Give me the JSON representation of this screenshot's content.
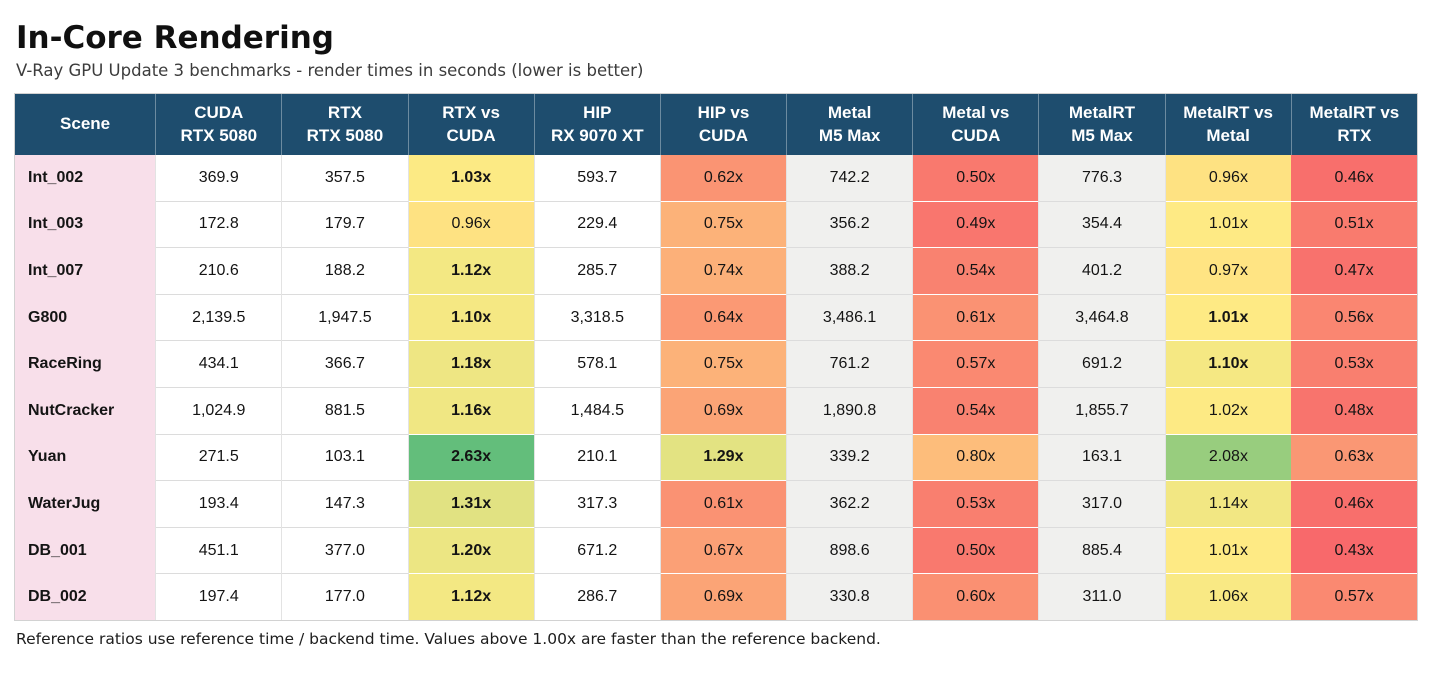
{
  "page": {
    "title": "In-Core Rendering",
    "subtitle": "V-Ray GPU Update 3 benchmarks - render times in seconds (lower is better)",
    "footnote": "Reference ratios use reference time / backend time. Values above 1.00x are faster than the reference backend."
  },
  "colors": {
    "header_bg": "#1E4D6E",
    "header_text": "#FFFFFF",
    "scene_col_bg": "#F8DFEA",
    "white_col_bg": "#FFFFFF",
    "gray_col_bg": "#F0F0EE",
    "heat_red": "#F8696B",
    "heat_yellow": "#FFEB84",
    "heat_green": "#63BE7B",
    "grid_line": "#DCDCDC"
  },
  "table": {
    "columns": [
      {
        "id": "scene",
        "lines": [
          "Scene"
        ],
        "kind": "scene"
      },
      {
        "id": "cuda-rtx5080",
        "lines": [
          "CUDA",
          "RTX 5080"
        ],
        "kind": "time",
        "bg": "#FFFFFF"
      },
      {
        "id": "rtx-rtx5080",
        "lines": [
          "RTX",
          "RTX 5080"
        ],
        "kind": "time",
        "bg": "#FFFFFF"
      },
      {
        "id": "rtx-vs-cuda",
        "lines": [
          "RTX vs",
          "CUDA"
        ],
        "kind": "ratio"
      },
      {
        "id": "hip-rx9070xt",
        "lines": [
          "HIP",
          "RX 9070 XT"
        ],
        "kind": "time",
        "bg": "#FFFFFF"
      },
      {
        "id": "hip-vs-cuda",
        "lines": [
          "HIP vs",
          "CUDA"
        ],
        "kind": "ratio"
      },
      {
        "id": "metal-m5max",
        "lines": [
          "Metal",
          "M5 Max"
        ],
        "kind": "time",
        "bg": "#F0F0EE"
      },
      {
        "id": "metal-vs-cuda",
        "lines": [
          "Metal vs",
          "CUDA"
        ],
        "kind": "ratio"
      },
      {
        "id": "metalrt-m5max",
        "lines": [
          "MetalRT",
          "M5 Max"
        ],
        "kind": "time",
        "bg": "#F0F0EE"
      },
      {
        "id": "metalrt-vs-metal",
        "lines": [
          "MetalRT vs",
          "Metal"
        ],
        "kind": "ratio"
      },
      {
        "id": "metalrt-vs-rtx",
        "lines": [
          "MetalRT vs",
          "RTX"
        ],
        "kind": "ratio"
      }
    ],
    "rows": [
      {
        "scene": "Int_002",
        "cells": [
          {
            "t": "369.9"
          },
          {
            "t": "357.5"
          },
          {
            "t": "1.03x",
            "bg": "#FCEA84",
            "b": true
          },
          {
            "t": "593.7"
          },
          {
            "t": "0.62x",
            "bg": "#FA9473"
          },
          {
            "t": "742.2"
          },
          {
            "t": "0.50x",
            "bg": "#F9796E"
          },
          {
            "t": "776.3"
          },
          {
            "t": "0.96x",
            "bg": "#FEE282"
          },
          {
            "t": "0.46x",
            "bg": "#F86F6C"
          }
        ]
      },
      {
        "scene": "Int_003",
        "cells": [
          {
            "t": "172.8"
          },
          {
            "t": "179.7"
          },
          {
            "t": "0.96x",
            "bg": "#FEE282"
          },
          {
            "t": "229.4"
          },
          {
            "t": "0.75x",
            "bg": "#FCB279"
          },
          {
            "t": "356.2"
          },
          {
            "t": "0.49x",
            "bg": "#F9766E"
          },
          {
            "t": "354.4"
          },
          {
            "t": "1.01x",
            "bg": "#FEEA84"
          },
          {
            "t": "0.51x",
            "bg": "#F97B6E"
          }
        ]
      },
      {
        "scene": "Int_007",
        "cells": [
          {
            "t": "210.6"
          },
          {
            "t": "188.2"
          },
          {
            "t": "1.12x",
            "bg": "#F3E883",
            "b": true
          },
          {
            "t": "285.7"
          },
          {
            "t": "0.74x",
            "bg": "#FCB079"
          },
          {
            "t": "388.2"
          },
          {
            "t": "0.54x",
            "bg": "#F98270"
          },
          {
            "t": "401.2"
          },
          {
            "t": "0.97x",
            "bg": "#FFE483"
          },
          {
            "t": "0.47x",
            "bg": "#F8726D"
          }
        ]
      },
      {
        "scene": "G800",
        "cells": [
          {
            "t": "2,139.5"
          },
          {
            "t": "1,947.5"
          },
          {
            "t": "1.10x",
            "bg": "#F5E883",
            "b": true
          },
          {
            "t": "3,318.5"
          },
          {
            "t": "0.64x",
            "bg": "#FB9974"
          },
          {
            "t": "3,486.1"
          },
          {
            "t": "0.61x",
            "bg": "#FA9273"
          },
          {
            "t": "3,464.8"
          },
          {
            "t": "1.01x",
            "bg": "#FEEA84",
            "b": true
          },
          {
            "t": "0.56x",
            "bg": "#FA8671"
          }
        ]
      },
      {
        "scene": "RaceRing",
        "cells": [
          {
            "t": "434.1"
          },
          {
            "t": "366.7"
          },
          {
            "t": "1.18x",
            "bg": "#EEE683",
            "b": true
          },
          {
            "t": "578.1"
          },
          {
            "t": "0.75x",
            "bg": "#FCB279"
          },
          {
            "t": "761.2"
          },
          {
            "t": "0.57x",
            "bg": "#FA8971"
          },
          {
            "t": "691.2"
          },
          {
            "t": "1.10x",
            "bg": "#F5E883",
            "b": true
          },
          {
            "t": "0.53x",
            "bg": "#F97F6F"
          }
        ]
      },
      {
        "scene": "NutCracker",
        "cells": [
          {
            "t": "1,024.9"
          },
          {
            "t": "881.5"
          },
          {
            "t": "1.16x",
            "bg": "#F0E783",
            "b": true
          },
          {
            "t": "1,484.5"
          },
          {
            "t": "0.69x",
            "bg": "#FBA476"
          },
          {
            "t": "1,890.8"
          },
          {
            "t": "0.54x",
            "bg": "#F98270"
          },
          {
            "t": "1,855.7"
          },
          {
            "t": "1.02x",
            "bg": "#FDEA84"
          },
          {
            "t": "0.48x",
            "bg": "#F8746D"
          }
        ]
      },
      {
        "scene": "Yuan",
        "cells": [
          {
            "t": "271.5"
          },
          {
            "t": "103.1"
          },
          {
            "t": "2.63x",
            "bg": "#63BE7B",
            "b": true
          },
          {
            "t": "210.1"
          },
          {
            "t": "1.29x",
            "bg": "#E3E382",
            "b": true
          },
          {
            "t": "339.2"
          },
          {
            "t": "0.80x",
            "bg": "#FDBD7B"
          },
          {
            "t": "163.1"
          },
          {
            "t": "2.08x",
            "bg": "#98CD7E"
          },
          {
            "t": "0.63x",
            "bg": "#FA9774"
          }
        ]
      },
      {
        "scene": "WaterJug",
        "cells": [
          {
            "t": "193.4"
          },
          {
            "t": "147.3"
          },
          {
            "t": "1.31x",
            "bg": "#E1E282",
            "b": true
          },
          {
            "t": "317.3"
          },
          {
            "t": "0.61x",
            "bg": "#FA9273"
          },
          {
            "t": "362.2"
          },
          {
            "t": "0.53x",
            "bg": "#F97F6F"
          },
          {
            "t": "317.0"
          },
          {
            "t": "1.14x",
            "bg": "#F2E783"
          },
          {
            "t": "0.46x",
            "bg": "#F86F6C"
          }
        ]
      },
      {
        "scene": "DB_001",
        "cells": [
          {
            "t": "451.1"
          },
          {
            "t": "377.0"
          },
          {
            "t": "1.20x",
            "bg": "#ECE683",
            "b": true
          },
          {
            "t": "671.2"
          },
          {
            "t": "0.67x",
            "bg": "#FBA076"
          },
          {
            "t": "898.6"
          },
          {
            "t": "0.50x",
            "bg": "#F9796E"
          },
          {
            "t": "885.4"
          },
          {
            "t": "1.01x",
            "bg": "#FEEA84"
          },
          {
            "t": "0.43x",
            "bg": "#F8696B"
          }
        ]
      },
      {
        "scene": "DB_002",
        "cells": [
          {
            "t": "197.4"
          },
          {
            "t": "177.0"
          },
          {
            "t": "1.12x",
            "bg": "#F3E883",
            "b": true
          },
          {
            "t": "286.7"
          },
          {
            "t": "0.69x",
            "bg": "#FBA476"
          },
          {
            "t": "330.8"
          },
          {
            "t": "0.60x",
            "bg": "#FA9072"
          },
          {
            "t": "311.0"
          },
          {
            "t": "1.06x",
            "bg": "#F9E984"
          },
          {
            "t": "0.57x",
            "bg": "#FA8971"
          }
        ]
      }
    ]
  },
  "chart_data": {
    "type": "table",
    "title": "In-Core Rendering",
    "subtitle": "V-Ray GPU Update 3 benchmarks - render times in seconds (lower is better)",
    "note": "Reference ratios use reference time / backend time. Values above 1.00x are faster than the reference backend.",
    "heatmap_scale": {
      "min_red": 0.43,
      "mid_yellow": 1.0,
      "max_green": 2.63
    },
    "columns": [
      "Scene",
      "CUDA RTX 5080",
      "RTX RTX 5080",
      "RTX vs CUDA",
      "HIP RX 9070 XT",
      "HIP vs CUDA",
      "Metal M5 Max",
      "Metal vs CUDA",
      "MetalRT M5 Max",
      "MetalRT vs Metal",
      "MetalRT vs RTX"
    ],
    "rows": [
      [
        "Int_002",
        369.9,
        357.5,
        "1.03x",
        593.7,
        "0.62x",
        742.2,
        "0.50x",
        776.3,
        "0.96x",
        "0.46x"
      ],
      [
        "Int_003",
        172.8,
        179.7,
        "0.96x",
        229.4,
        "0.75x",
        356.2,
        "0.49x",
        354.4,
        "1.01x",
        "0.51x"
      ],
      [
        "Int_007",
        210.6,
        188.2,
        "1.12x",
        285.7,
        "0.74x",
        388.2,
        "0.54x",
        401.2,
        "0.97x",
        "0.47x"
      ],
      [
        "G800",
        2139.5,
        1947.5,
        "1.10x",
        3318.5,
        "0.64x",
        3486.1,
        "0.61x",
        3464.8,
        "1.01x",
        "0.56x"
      ],
      [
        "RaceRing",
        434.1,
        366.7,
        "1.18x",
        578.1,
        "0.75x",
        761.2,
        "0.57x",
        691.2,
        "1.10x",
        "0.53x"
      ],
      [
        "NutCracker",
        1024.9,
        881.5,
        "1.16x",
        1484.5,
        "0.69x",
        1890.8,
        "0.54x",
        1855.7,
        "1.02x",
        "0.48x"
      ],
      [
        "Yuan",
        271.5,
        103.1,
        "2.63x",
        210.1,
        "1.29x",
        339.2,
        "0.80x",
        163.1,
        "2.08x",
        "0.63x"
      ],
      [
        "WaterJug",
        193.4,
        147.3,
        "1.31x",
        317.3,
        "0.61x",
        362.2,
        "0.53x",
        317.0,
        "1.14x",
        "0.46x"
      ],
      [
        "DB_001",
        451.1,
        377.0,
        "1.20x",
        671.2,
        "0.67x",
        898.6,
        "0.50x",
        885.4,
        "1.01x",
        "0.43x"
      ],
      [
        "DB_002",
        197.4,
        177.0,
        "1.12x",
        286.7,
        "0.69x",
        330.8,
        "0.60x",
        311.0,
        "1.06x",
        "0.57x"
      ]
    ]
  }
}
